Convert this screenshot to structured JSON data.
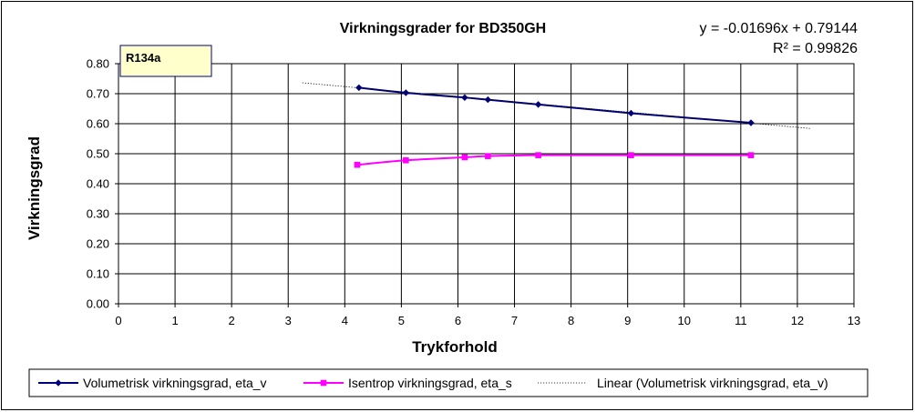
{
  "chart_data": {
    "type": "scatter",
    "title": "Virkningsgrader for BD350GH",
    "xlabel": "Trykforhold",
    "ylabel": "Virkningsgrad",
    "xlim": [
      0,
      13
    ],
    "ylim": [
      0,
      0.8
    ],
    "x_ticks": [
      "0",
      "1",
      "2",
      "3",
      "4",
      "5",
      "6",
      "7",
      "8",
      "9",
      "10",
      "11",
      "12",
      "13"
    ],
    "y_ticks": [
      "0.00",
      "0.10",
      "0.20",
      "0.30",
      "0.40",
      "0.50",
      "0.60",
      "0.70",
      "0.80"
    ],
    "grid": true,
    "legend_position": "bottom",
    "series": [
      {
        "name": "Volumetrisk virkningsgrad, eta_v",
        "color": "#000080",
        "marker": "diamond",
        "line": "smooth",
        "points": [
          [
            4.25,
            0.72
          ],
          [
            5.08,
            0.703
          ],
          [
            6.12,
            0.687
          ],
          [
            6.53,
            0.68
          ],
          [
            7.42,
            0.664
          ],
          [
            9.06,
            0.635
          ],
          [
            11.18,
            0.603
          ]
        ]
      },
      {
        "name": "Isentrop virkningsgrad, eta_s",
        "color": "#ff00ff",
        "marker": "square",
        "line": "smooth",
        "points": [
          [
            4.22,
            0.463
          ],
          [
            5.08,
            0.478
          ],
          [
            6.12,
            0.488
          ],
          [
            6.53,
            0.492
          ],
          [
            7.42,
            0.495
          ],
          [
            9.06,
            0.495
          ],
          [
            11.18,
            0.495
          ]
        ]
      },
      {
        "name": "Linear (Volumetrisk virkningsgrad, eta_v)",
        "color": "#000000",
        "line": "dotted",
        "trend": {
          "slope": -0.01696,
          "intercept": 0.79144,
          "x_range": [
            3.25,
            12.25
          ]
        }
      }
    ],
    "annotations": {
      "equation": "y = -0.01696x + 0.79144",
      "r_squared": "R² = 0.99826",
      "textbox": "R134a"
    }
  }
}
